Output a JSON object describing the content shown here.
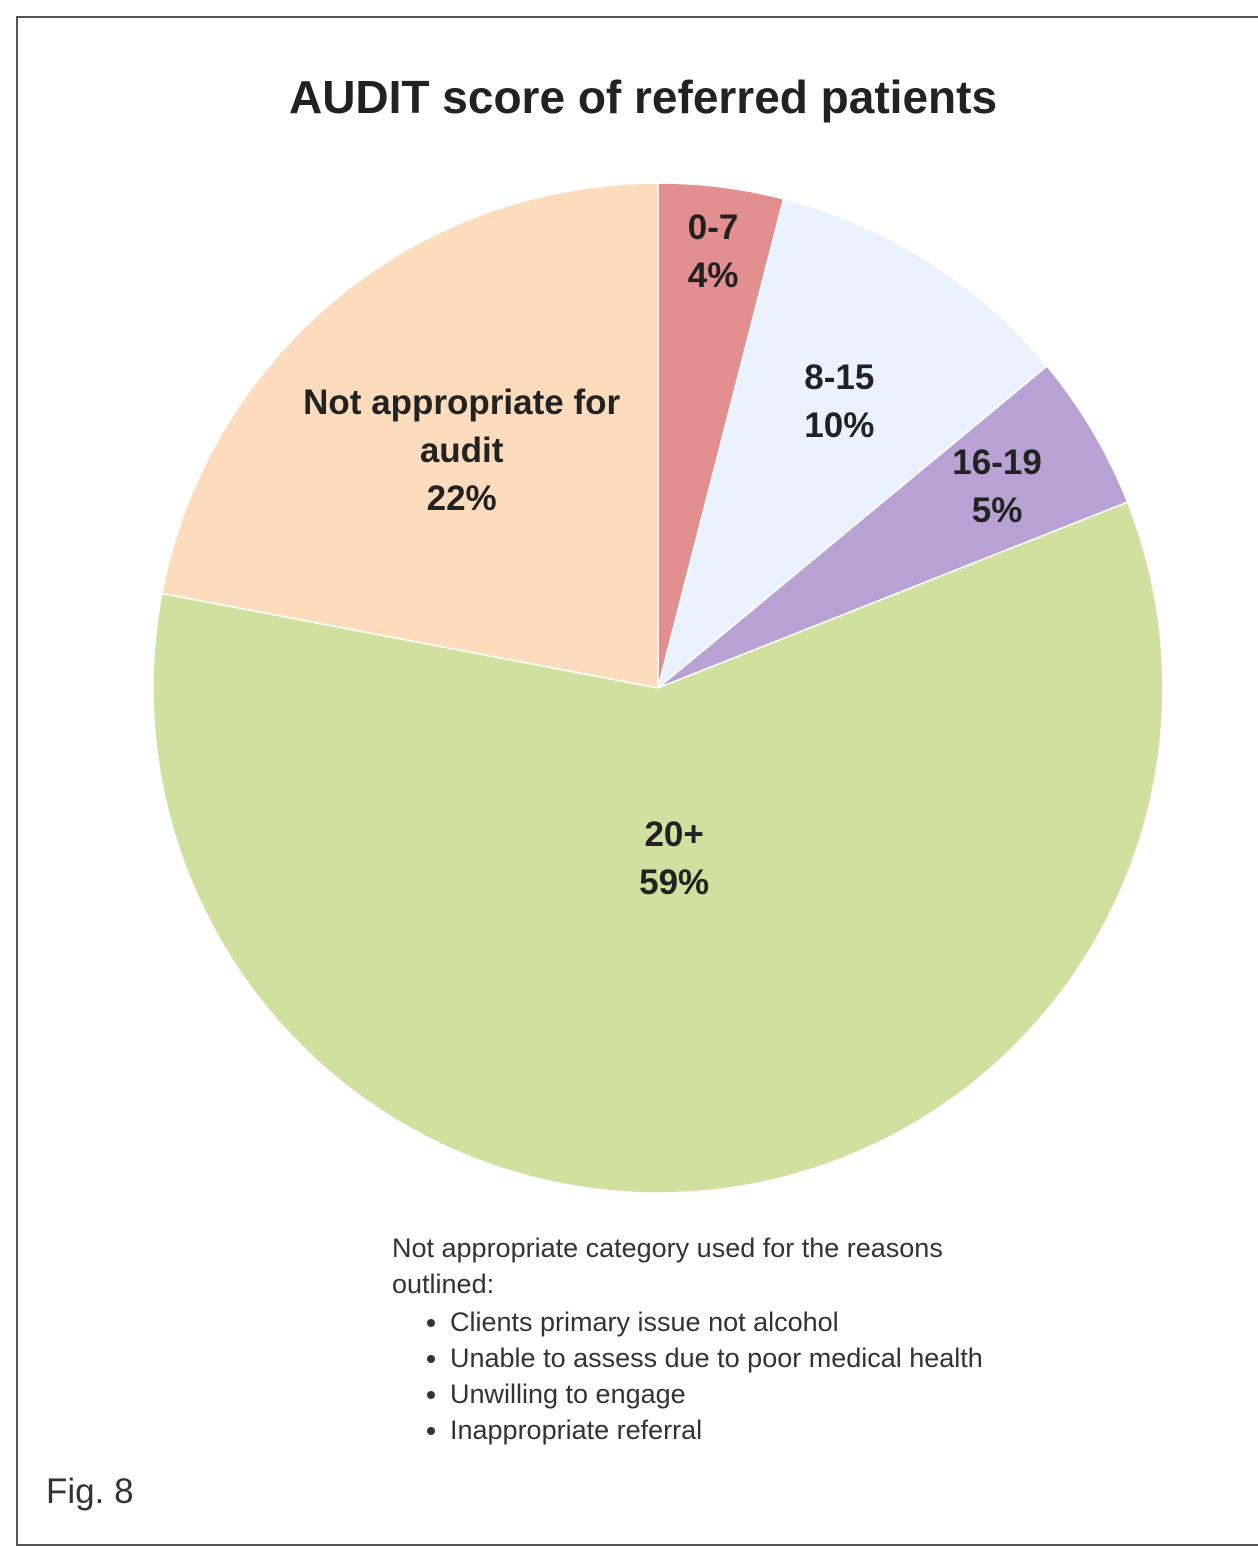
{
  "chart_data": {
    "type": "pie",
    "title": "AUDIT score of referred patients",
    "categories": [
      "0-7",
      "8-15",
      "16-19",
      "20+",
      "Not appropriate for audit"
    ],
    "values": [
      4,
      10,
      5,
      59,
      22
    ],
    "value_labels": [
      "4%",
      "10%",
      "5%",
      "59%",
      "22%"
    ],
    "colors": [
      "#e48f8f",
      "#eaf3fd",
      "#b8a2d4",
      "#cfe09f",
      "#fddcbe"
    ],
    "annotation": "Not appropriate category used for the reasons outlined:",
    "annotation_items": [
      "Clients primary issue not alcohol",
      "Unable to assess due to poor medical health",
      "Unwilling to engage",
      "Inappropriate referral"
    ],
    "caption": "Fig. 8"
  }
}
